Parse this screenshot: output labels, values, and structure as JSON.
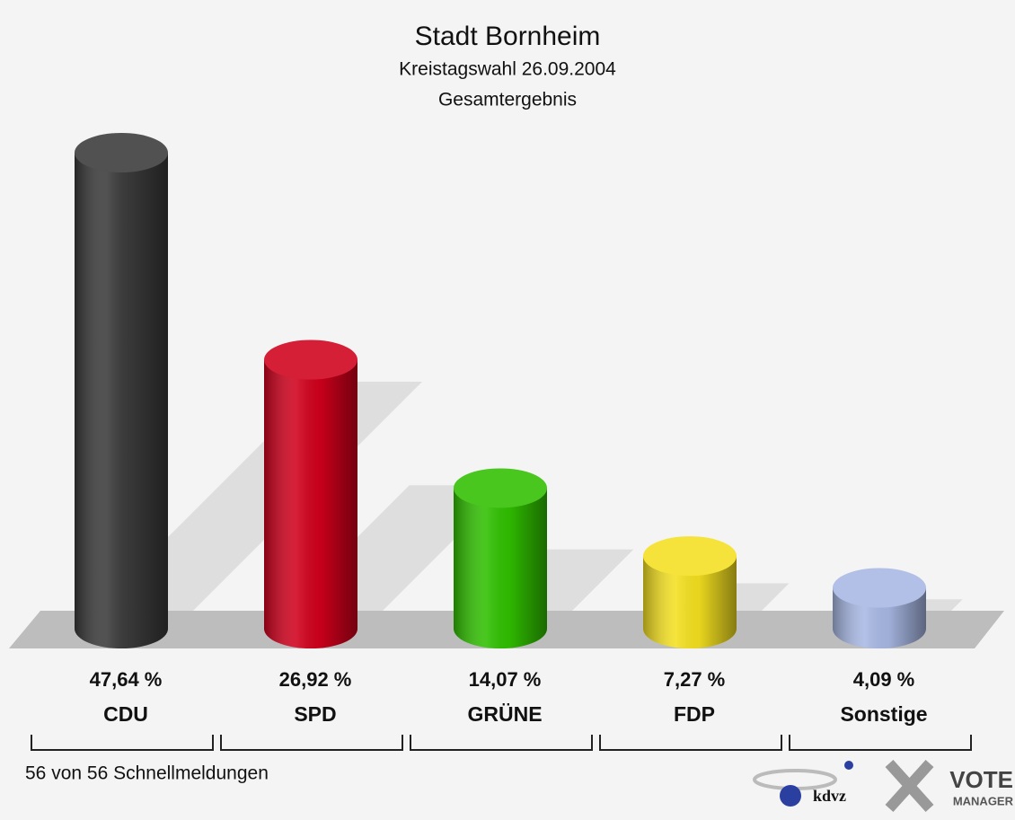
{
  "chart_data": {
    "type": "bar",
    "title": "Stadt Bornheim",
    "subtitle": "Kreistagswahl 26.09.2004",
    "subtitle2": "Gesamtergebnis",
    "categories": [
      "CDU",
      "SPD",
      "GRÜNE",
      "FDP",
      "Sonstige"
    ],
    "values": [
      47.64,
      26.92,
      14.07,
      7.27,
      4.09
    ],
    "value_labels": [
      "47,64 %",
      "26,92 %",
      "14,07 %",
      "7,27 %",
      "4,09 %"
    ],
    "colors": [
      "#3a3a3a",
      "#d0001c",
      "#30c000",
      "#f4e020",
      "#a8b8e4"
    ],
    "footer": "56 von 56 Schnellmeldungen",
    "logo_texts": [
      "kdvz",
      "VOTE",
      "MANAGER"
    ]
  }
}
